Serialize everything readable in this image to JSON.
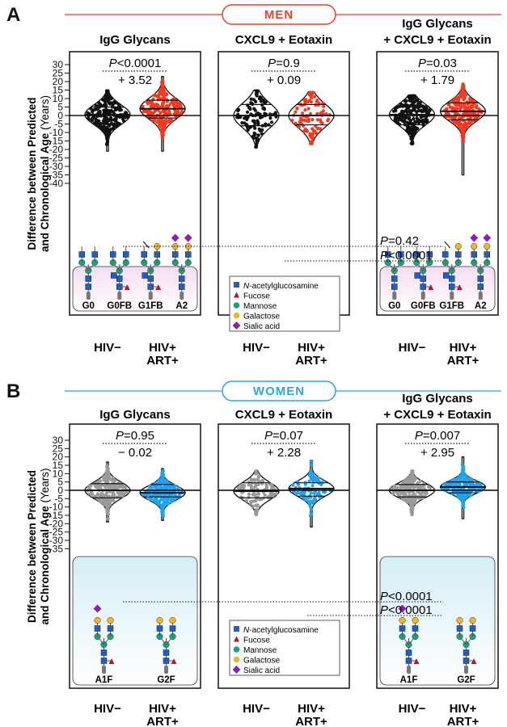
{
  "sections": [
    {
      "letter": "A",
      "group": "MEN",
      "banner_color": "#e8412a",
      "positive_color": "#f5391f",
      "negative_color": "#111111",
      "ylabel_line1": "Difference between Predicted",
      "ylabel_line2_main": "and Chronological Age",
      "ylabel_line2_unit": "(Years)",
      "yticks": [
        30,
        25,
        20,
        15,
        10,
        5,
        0,
        -5,
        -10,
        -15,
        -20,
        -25,
        -30,
        -35,
        -40
      ],
      "yrange": [
        -40,
        30
      ],
      "panels": [
        {
          "title": [
            "IgG Glycans"
          ],
          "p": "<0.0001",
          "diff": "+ 3.52",
          "groups": [
            "HIV−",
            "HIV+ ART+"
          ],
          "distributions": [
            {
              "median": 0.5,
              "q1": -5,
              "q3": 5,
              "min": -21,
              "max": 15
            },
            {
              "median": 4,
              "q1": -1.5,
              "q3": 9,
              "min": -21,
              "max": 23
            }
          ],
          "glycans": [
            "G0",
            "G0FB",
            "G1FB",
            "A2"
          ]
        },
        {
          "title": [
            "CXCL9 + Eotaxin"
          ],
          "p": "=0.9",
          "diff": "+ 0.09",
          "groups": [
            "HIV−",
            "HIV+ ART+"
          ],
          "distributions": [
            {
              "median": 0,
              "q1": -6,
              "q3": 6.5,
              "min": -19,
              "max": 15
            },
            {
              "median": 0,
              "q1": -5.5,
              "q3": 6.5,
              "min": -17,
              "max": 14
            }
          ],
          "legend": [
            "N-acetylglucosamine",
            "Fucose",
            "Mannose",
            "Galactose",
            "Sialic acid"
          ]
        },
        {
          "title": [
            "IgG Glycans",
            "+ CXCL9 + Eotaxin"
          ],
          "p": "=0.03",
          "diff": "+ 1.79",
          "groups": [
            "HIV−",
            "HIV+ ART+"
          ],
          "distributions": [
            {
              "median": 0.5,
              "q1": -5.5,
              "q3": 5,
              "min": -17,
              "max": 12
            },
            {
              "median": 2.5,
              "q1": -2.5,
              "q3": 7.5,
              "min": -35,
              "max": 19
            }
          ],
          "glycans": [
            "G0",
            "G0FB",
            "G1FB",
            "A2"
          ]
        }
      ],
      "cross_p": [
        "=0.42",
        "<0.0001"
      ]
    },
    {
      "letter": "B",
      "group": "WOMEN",
      "banner_color": "#2aa6e8",
      "positive_color": "#1fa3f0",
      "negative_color": "#9a9a9a",
      "ylabel_line1": "Difference between Predicted",
      "ylabel_line2_main": "and Chronological Age",
      "ylabel_line2_unit": "(Years)",
      "yticks": [
        30,
        25,
        20,
        15,
        10,
        5,
        0,
        -5,
        -10,
        -15,
        -20,
        -25,
        -30,
        -35
      ],
      "yrange": [
        -35,
        30
      ],
      "panels": [
        {
          "title": [
            "IgG Glycans"
          ],
          "p": "=0.95",
          "diff": "− 0.02",
          "groups": [
            "HIV−",
            "HIV+ ART+"
          ],
          "distributions": [
            {
              "median": 0,
              "q1": -4.5,
              "q3": 4,
              "min": -19,
              "max": 17
            },
            {
              "median": -1.5,
              "q1": -4,
              "q3": 3.5,
              "min": -18,
              "max": 13
            }
          ],
          "glycans": [
            "A1F",
            "G2F"
          ]
        },
        {
          "title": [
            "CXCL9 + Eotaxin"
          ],
          "p": "=0.07",
          "diff": "+ 2.28",
          "groups": [
            "HIV−",
            "HIV+ ART+"
          ],
          "distributions": [
            {
              "median": -0.5,
              "q1": -4.5,
              "q3": 4.5,
              "min": -15,
              "max": 12
            },
            {
              "median": 1,
              "q1": -3.5,
              "q3": 4.5,
              "min": -22,
              "max": 18
            }
          ],
          "legend": [
            "N-acetylglucosamine",
            "Fucose",
            "Mannose",
            "Galactose",
            "Sialic acid"
          ]
        },
        {
          "title": [
            "IgG Glycans",
            "+ CXCL9 + Eotaxin"
          ],
          "p": "=0.007",
          "diff": "+ 2.95",
          "groups": [
            "HIV−",
            "HIV+ ART+"
          ],
          "distributions": [
            {
              "median": 0,
              "q1": -4,
              "q3": 3.5,
              "min": -15,
              "max": 12
            },
            {
              "median": 2,
              "q1": -1.5,
              "q3": 5,
              "min": -17,
              "max": 20
            }
          ],
          "glycans": [
            "A1F",
            "G2F"
          ]
        }
      ],
      "cross_p": [
        "<0.0001",
        "<0.0001"
      ]
    }
  ],
  "legend_colors": {
    "N-acetylglucosamine": "#1f5fc9",
    "Fucose": "#b3182b",
    "Mannose": "#16a37f",
    "Galactose": "#f2b81d",
    "Sialic acid": "#8a1fb0"
  }
}
